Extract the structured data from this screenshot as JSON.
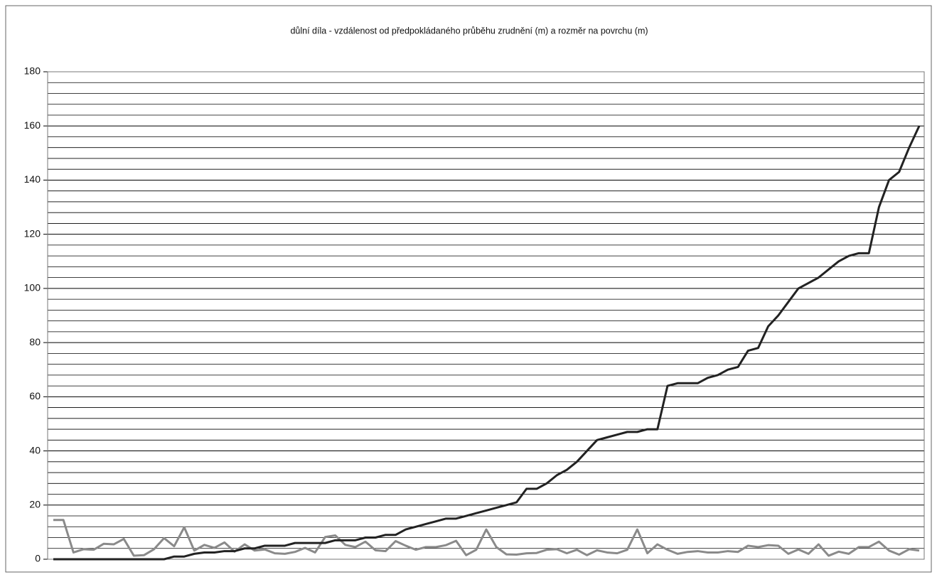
{
  "chart_data": {
    "type": "line",
    "title": "důlní díla - vzdálenost od předpokládaného průběhu zrudnění (m) a rozměr na povrchu (m)",
    "series": [
      {
        "color": "#222222",
        "values": [
          0,
          0,
          0,
          0,
          0,
          0,
          0,
          0,
          0,
          0,
          0,
          0,
          1,
          1,
          2,
          2.5,
          2.5,
          3,
          3,
          4,
          4,
          5,
          5,
          5,
          6,
          6,
          6,
          6,
          7,
          7,
          7,
          8,
          8,
          9,
          9,
          11,
          12,
          13,
          14,
          15,
          15,
          16,
          17,
          18,
          19,
          20,
          21,
          26,
          26,
          28,
          31,
          33,
          36,
          40,
          44,
          45,
          46,
          47,
          47,
          48,
          48,
          64,
          65,
          65,
          65,
          67,
          68,
          70,
          71,
          77,
          78,
          86,
          90,
          95,
          100,
          102,
          104,
          107,
          110,
          112,
          113,
          113,
          130,
          140,
          143,
          152,
          160
        ]
      },
      {
        "color": "#8a8a8a",
        "values": [
          14.5,
          14.5,
          2.5,
          3.7,
          3.5,
          5.7,
          5.5,
          7.5,
          1.3,
          1.5,
          3.7,
          7.8,
          4.8,
          11.8,
          3.2,
          5.3,
          4.2,
          6.2,
          2.8,
          5.5,
          3.2,
          3.6,
          2.2,
          2,
          2.7,
          4.2,
          2.5,
          8.2,
          8.8,
          5.3,
          4.5,
          6.5,
          3.3,
          3,
          6.7,
          5,
          3.5,
          4.5,
          4.5,
          5.2,
          6.8,
          1.5,
          3.5,
          11,
          4.5,
          1.8,
          1.7,
          2.2,
          2.3,
          3.5,
          3.7,
          2.2,
          3.5,
          1.5,
          3.3,
          2.5,
          2.2,
          3.5,
          11,
          2.2,
          5.5,
          3.5,
          2,
          2.7,
          3,
          2.5,
          2.5,
          3,
          2.7,
          5,
          4.5,
          5.2,
          5,
          2,
          3.6,
          2,
          5.5,
          1.3,
          2.8,
          2,
          4.5,
          4.5,
          6.5,
          3.2,
          1.7,
          3.7,
          3.2
        ]
      }
    ],
    "ylim": [
      0,
      180
    ],
    "yticks": [
      0,
      20,
      40,
      60,
      80,
      100,
      120,
      140,
      160,
      180
    ],
    "minor_yticks": [
      4,
      8,
      12,
      16,
      24,
      28,
      32,
      36,
      44,
      48,
      52,
      56,
      64,
      68,
      72,
      76,
      84,
      88,
      92,
      96,
      104,
      108,
      112,
      116,
      124,
      128,
      132,
      136,
      144,
      148,
      152,
      156,
      164,
      168,
      172,
      176
    ],
    "grid": true
  }
}
